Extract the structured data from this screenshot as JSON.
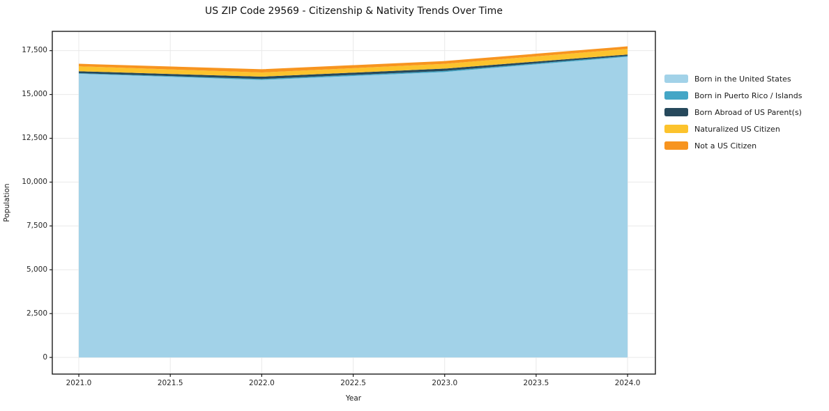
{
  "figure": {
    "title": "US ZIP Code 29569 - Citizenship & Nativity Trends Over Time"
  },
  "chart_data": {
    "type": "area",
    "stacked": true,
    "title": "US ZIP Code 29569 - Citizenship & Nativity Trends Over Time",
    "xlabel": "Year",
    "ylabel": "Population",
    "x": [
      2021,
      2022,
      2023,
      2024
    ],
    "series": [
      {
        "name": "Born in the United States",
        "color": "#a2d2e8",
        "values": [
          16180,
          15830,
          16280,
          17150
        ]
      },
      {
        "name": "Born in Puerto Rico / Islands",
        "color": "#44a6c6",
        "values": [
          35,
          55,
          65,
          50
        ]
      },
      {
        "name": "Born Abroad of US Parent(s)",
        "color": "#26495c",
        "values": [
          110,
          130,
          130,
          80
        ]
      },
      {
        "name": "Naturalized US Citizen",
        "color": "#fcc32d",
        "values": [
          280,
          240,
          270,
          320
        ]
      },
      {
        "name": "Not a US Citizen",
        "color": "#f7941f",
        "values": [
          145,
          185,
          160,
          145
        ]
      }
    ],
    "totals": [
      16750,
      16440,
      16905,
      17745
    ],
    "x_ticks": [
      2021.0,
      2021.5,
      2022.0,
      2022.5,
      2023.0,
      2023.5,
      2024.0
    ],
    "x_tick_labels": [
      "2021.0",
      "2021.5",
      "2022.0",
      "2022.5",
      "2023.0",
      "2023.5",
      "2024.0"
    ],
    "y_ticks": [
      0,
      2500,
      5000,
      7500,
      10000,
      12500,
      15000,
      17500
    ],
    "y_tick_labels": [
      "0",
      "2,500",
      "5,000",
      "7,500",
      "10,000",
      "12,500",
      "15,000",
      "17,500"
    ],
    "xlim": [
      2020.855,
      2024.152
    ],
    "ylim": [
      -950,
      18600
    ],
    "grid": true,
    "grid_color": "#e9e9e9",
    "spine_color": "#1a1a1a",
    "background": "#ffffff",
    "legend_position": "right-outside"
  }
}
